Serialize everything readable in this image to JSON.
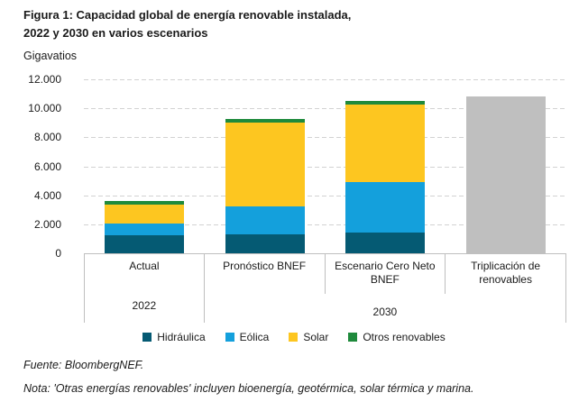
{
  "figure": {
    "title_line1": "Figura 1: Capacidad global de energía renovable instalada,",
    "title_line2": "2022 y 2030 en varios escenarios",
    "unit_label": "Gigavatios",
    "source": "Fuente: BloombergNEF.",
    "note": "Nota: 'Otras energías renovables' incluyen bioenergía, geotérmica, solar térmica y marina."
  },
  "chart_data": {
    "type": "bar",
    "stacked": true,
    "title": "Figura 1: Capacidad global de energía renovable instalada, 2022 y 2030 en varios escenarios",
    "ylabel": "Gigavatios",
    "ylim": [
      0,
      12000
    ],
    "grid": "horizontal-dashed",
    "legend_position": "bottom",
    "y_ticks": [
      {
        "value": 0,
        "label": "0"
      },
      {
        "value": 2000,
        "label": "2.000"
      },
      {
        "value": 4000,
        "label": "4.000"
      },
      {
        "value": 6000,
        "label": "6.000"
      },
      {
        "value": 8000,
        "label": "8.000"
      },
      {
        "value": 10000,
        "label": "10.000"
      },
      {
        "value": 12000,
        "label": "12.000"
      }
    ],
    "categories": [
      "Actual",
      "Pronóstico BNEF",
      "Escenario Cero Neto BNEF",
      "Triplicación de renovables"
    ],
    "year_groups": [
      {
        "label": "2022",
        "start": 0,
        "end": 0
      },
      {
        "label": "2030",
        "start": 1,
        "end": 3
      }
    ],
    "series": [
      {
        "name": "Hidráulica",
        "color": "#055a73",
        "in_legend": true,
        "values": [
          1250,
          1300,
          1400,
          0
        ]
      },
      {
        "name": "Eólica",
        "color": "#14a0dc",
        "in_legend": true,
        "values": [
          800,
          1950,
          3500,
          0
        ]
      },
      {
        "name": "Solar",
        "color": "#fdc620",
        "in_legend": true,
        "values": [
          1300,
          5750,
          5350,
          0
        ]
      },
      {
        "name": "Otros renovables",
        "color": "#1f8a3c",
        "in_legend": true,
        "values": [
          250,
          250,
          250,
          0
        ]
      },
      {
        "name": "Triplicación de renovables",
        "color": "#bfbfbf",
        "in_legend": false,
        "values": [
          0,
          0,
          0,
          10800
        ]
      }
    ],
    "totals": [
      3600,
      9250,
      10500,
      10800
    ]
  },
  "legend": {
    "items": [
      {
        "label": "Hidráulica",
        "color": "#055a73"
      },
      {
        "label": "Eólica",
        "color": "#14a0dc"
      },
      {
        "label": "Solar",
        "color": "#fdc620"
      },
      {
        "label": "Otros renovables",
        "color": "#1f8a3c"
      }
    ]
  },
  "colors": {
    "gridline": "#d2d2d2",
    "axis_border": "#bfbfbf",
    "text": "#1a1a1a"
  }
}
